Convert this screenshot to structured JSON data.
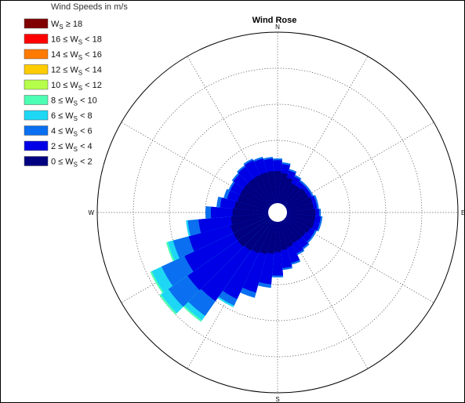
{
  "chart_data": {
    "type": "wind-rose",
    "title": "Wind Rose",
    "legend_title": "Wind Speeds in m/s",
    "compass_labels": {
      "north": "N",
      "east": "E",
      "south": "S",
      "west": "W"
    },
    "legend": [
      {
        "rel": "≥ 18",
        "color": "#800000"
      },
      {
        "pre": "16 ≤",
        "rel": "< 18",
        "color": "#ff0000"
      },
      {
        "pre": "14 ≤",
        "rel": "< 16",
        "color": "#ff7a00"
      },
      {
        "pre": "12 ≤",
        "rel": "< 14",
        "color": "#ffcc00"
      },
      {
        "pre": "10 ≤",
        "rel": "< 12",
        "color": "#b5ff4a"
      },
      {
        "pre": "8 ≤",
        "rel": "< 10",
        "color": "#4dffb3"
      },
      {
        "pre": "6 ≤",
        "rel": "< 8",
        "color": "#1ed7f5"
      },
      {
        "pre": "4 ≤",
        "rel": "< 6",
        "color": "#0a6ff0"
      },
      {
        "pre": "2 ≤",
        "rel": "< 4",
        "color": "#0000e6"
      },
      {
        "pre": "0 ≤",
        "rel": "< 2",
        "color": "#000080"
      }
    ],
    "sector_width_deg": 10,
    "radial_rings": 5,
    "grid": true,
    "radial_axis": "cumulative frequency (relative, 5 rings)",
    "sectors": [
      {
        "dir": 0,
        "cum": [
          0.23,
          0.29,
          0.3,
          0.3,
          0.3,
          0.3,
          0.3,
          0.3,
          0.3,
          0.3
        ]
      },
      {
        "dir": 10,
        "cum": [
          0.22,
          0.27,
          0.28,
          0.28,
          0.28,
          0.28,
          0.28,
          0.28,
          0.28,
          0.28
        ]
      },
      {
        "dir": 20,
        "cum": [
          0.2,
          0.24,
          0.25,
          0.25,
          0.25,
          0.25,
          0.25,
          0.25,
          0.25,
          0.25
        ]
      },
      {
        "dir": 30,
        "cum": [
          0.18,
          0.22,
          0.23,
          0.23,
          0.23,
          0.23,
          0.23,
          0.23,
          0.23,
          0.23
        ]
      },
      {
        "dir": 40,
        "cum": [
          0.18,
          0.21,
          0.22,
          0.22,
          0.22,
          0.22,
          0.22,
          0.22,
          0.22,
          0.22
        ]
      },
      {
        "dir": 50,
        "cum": [
          0.19,
          0.21,
          0.22,
          0.22,
          0.22,
          0.22,
          0.22,
          0.22,
          0.22,
          0.22
        ]
      },
      {
        "dir": 60,
        "cum": [
          0.19,
          0.21,
          0.22,
          0.22,
          0.22,
          0.22,
          0.22,
          0.22,
          0.22,
          0.22
        ]
      },
      {
        "dir": 70,
        "cum": [
          0.2,
          0.22,
          0.23,
          0.23,
          0.23,
          0.23,
          0.23,
          0.23,
          0.23,
          0.23
        ]
      },
      {
        "dir": 80,
        "cum": [
          0.2,
          0.22,
          0.23,
          0.23,
          0.23,
          0.23,
          0.23,
          0.23,
          0.23,
          0.23
        ]
      },
      {
        "dir": 90,
        "cum": [
          0.21,
          0.23,
          0.24,
          0.24,
          0.24,
          0.24,
          0.24,
          0.24,
          0.24,
          0.24
        ]
      },
      {
        "dir": 100,
        "cum": [
          0.21,
          0.24,
          0.25,
          0.25,
          0.25,
          0.25,
          0.25,
          0.25,
          0.25,
          0.25
        ]
      },
      {
        "dir": 110,
        "cum": [
          0.21,
          0.24,
          0.25,
          0.25,
          0.25,
          0.25,
          0.25,
          0.25,
          0.25,
          0.25
        ]
      },
      {
        "dir": 120,
        "cum": [
          0.2,
          0.23,
          0.24,
          0.24,
          0.24,
          0.24,
          0.24,
          0.24,
          0.24,
          0.24
        ]
      },
      {
        "dir": 130,
        "cum": [
          0.19,
          0.23,
          0.24,
          0.24,
          0.24,
          0.24,
          0.24,
          0.24,
          0.24,
          0.24
        ]
      },
      {
        "dir": 140,
        "cum": [
          0.19,
          0.24,
          0.25,
          0.25,
          0.25,
          0.25,
          0.25,
          0.25,
          0.25,
          0.25
        ]
      },
      {
        "dir": 150,
        "cum": [
          0.19,
          0.25,
          0.26,
          0.26,
          0.26,
          0.26,
          0.26,
          0.26,
          0.26,
          0.26
        ]
      },
      {
        "dir": 160,
        "cum": [
          0.2,
          0.29,
          0.3,
          0.3,
          0.3,
          0.3,
          0.3,
          0.3,
          0.3,
          0.3
        ]
      },
      {
        "dir": 170,
        "cum": [
          0.21,
          0.31,
          0.32,
          0.32,
          0.32,
          0.32,
          0.32,
          0.32,
          0.32,
          0.32
        ]
      },
      {
        "dir": 180,
        "cum": [
          0.22,
          0.35,
          0.36,
          0.36,
          0.36,
          0.36,
          0.36,
          0.36,
          0.36,
          0.36
        ]
      },
      {
        "dir": 190,
        "cum": [
          0.23,
          0.4,
          0.42,
          0.42,
          0.42,
          0.42,
          0.42,
          0.42,
          0.42,
          0.42
        ]
      },
      {
        "dir": 200,
        "cum": [
          0.24,
          0.46,
          0.49,
          0.49,
          0.49,
          0.49,
          0.49,
          0.49,
          0.49,
          0.49
        ]
      },
      {
        "dir": 210,
        "cum": [
          0.25,
          0.53,
          0.57,
          0.58,
          0.58,
          0.58,
          0.58,
          0.58,
          0.58,
          0.58
        ]
      },
      {
        "dir": 220,
        "cum": [
          0.26,
          0.6,
          0.7,
          0.73,
          0.74,
          0.74,
          0.74,
          0.74,
          0.74,
          0.74
        ]
      },
      {
        "dir": 230,
        "cum": [
          0.27,
          0.61,
          0.74,
          0.79,
          0.8,
          0.8,
          0.8,
          0.8,
          0.8,
          0.8
        ]
      },
      {
        "dir": 240,
        "cum": [
          0.27,
          0.57,
          0.71,
          0.77,
          0.78,
          0.78,
          0.78,
          0.78,
          0.78,
          0.78
        ]
      },
      {
        "dir": 250,
        "cum": [
          0.27,
          0.51,
          0.6,
          0.63,
          0.64,
          0.64,
          0.64,
          0.64,
          0.64,
          0.64
        ]
      },
      {
        "dir": 260,
        "cum": [
          0.26,
          0.44,
          0.5,
          0.51,
          0.51,
          0.51,
          0.51,
          0.51,
          0.51,
          0.51
        ]
      },
      {
        "dir": 270,
        "cum": [
          0.25,
          0.37,
          0.4,
          0.4,
          0.4,
          0.4,
          0.4,
          0.4,
          0.4,
          0.4
        ]
      },
      {
        "dir": 280,
        "cum": [
          0.24,
          0.32,
          0.34,
          0.34,
          0.34,
          0.34,
          0.34,
          0.34,
          0.34,
          0.34
        ]
      },
      {
        "dir": 290,
        "cum": [
          0.23,
          0.29,
          0.31,
          0.31,
          0.31,
          0.31,
          0.31,
          0.31,
          0.31,
          0.31
        ]
      },
      {
        "dir": 300,
        "cum": [
          0.23,
          0.29,
          0.3,
          0.3,
          0.3,
          0.3,
          0.3,
          0.3,
          0.3,
          0.3
        ]
      },
      {
        "dir": 310,
        "cum": [
          0.23,
          0.3,
          0.31,
          0.31,
          0.31,
          0.31,
          0.31,
          0.31,
          0.31,
          0.31
        ]
      },
      {
        "dir": 320,
        "cum": [
          0.23,
          0.31,
          0.32,
          0.32,
          0.32,
          0.32,
          0.32,
          0.32,
          0.32,
          0.32
        ]
      },
      {
        "dir": 330,
        "cum": [
          0.23,
          0.32,
          0.33,
          0.33,
          0.33,
          0.33,
          0.33,
          0.33,
          0.33,
          0.33
        ]
      },
      {
        "dir": 340,
        "cum": [
          0.23,
          0.31,
          0.32,
          0.32,
          0.32,
          0.32,
          0.32,
          0.32,
          0.32,
          0.32
        ]
      },
      {
        "dir": 350,
        "cum": [
          0.23,
          0.3,
          0.31,
          0.31,
          0.31,
          0.31,
          0.31,
          0.31,
          0.31,
          0.31
        ]
      }
    ]
  }
}
